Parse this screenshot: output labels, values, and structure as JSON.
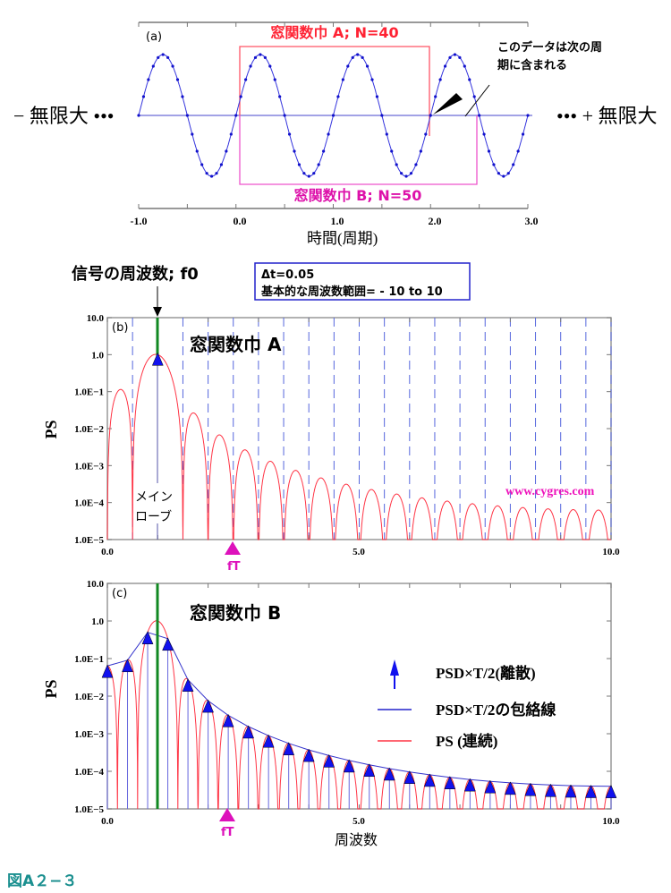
{
  "figure_title": "図A２−３",
  "chart_data": [
    {
      "type": "line",
      "panel": "(a)",
      "description_params": {
        "dt": 0.05,
        "signal_frequency": 1.0,
        "amplitude": 1.0
      },
      "xlim": [
        -1.0,
        3.0
      ],
      "xticks": [
        "-1.0",
        "0.0",
        "1.0",
        "2.0",
        "3.0"
      ],
      "xlabel": "時間(周期)",
      "left_label": "− 無限大 •••",
      "right_label": "••• + 無限大",
      "window_a_label": "窓関数巾 A; N=40",
      "window_b_label": "窓関数巾 B; N=50",
      "window_a": {
        "start": 0.0,
        "end": 1.95,
        "N": 40
      },
      "window_b": {
        "start": 0.0,
        "end": 2.45,
        "N": 50
      },
      "annotation": [
        "このデータは次の周",
        "期に含まれる"
      ]
    },
    {
      "type": "line",
      "panel": "(b)",
      "title": "窓関数巾 A",
      "N": 40,
      "dt": 0.05,
      "f0": 1.0,
      "ylabel": "PS",
      "yscale": "log",
      "ylim": [
        1e-05,
        10
      ],
      "yticks": [
        "10.0",
        "1.0",
        "1.0E−1",
        "1.0E−2",
        "1.0E−3",
        "1.0E−4",
        "1.0E−5"
      ],
      "xlim": [
        0,
        10
      ],
      "xticks": [
        "0.0",
        "5.0",
        "10.0"
      ],
      "discrete_spacing": 0.5,
      "signal_label": "信号の周波数; f0",
      "info": [
        "Δt=0.05",
        "基本的な周波数範囲= - 10 to 10"
      ],
      "mainlobe_label": [
        "メイン",
        "ローブ"
      ],
      "ft_label": "fT",
      "ft_value": 2.5,
      "watermark": "www.cygres.com"
    },
    {
      "type": "line",
      "panel": "(c)",
      "title": "窓関数巾 B",
      "N": 50,
      "dt": 0.05,
      "f0": 1.0,
      "ylabel": "PS",
      "yscale": "log",
      "ylim": [
        1e-05,
        10
      ],
      "yticks": [
        "10.0",
        "1.0",
        "1.0E−1",
        "1.0E−2",
        "1.0E−3",
        "1.0E−4",
        "1.0E−5"
      ],
      "xlim": [
        0,
        10
      ],
      "xticks": [
        "0.0",
        "5.0",
        "10.0"
      ],
      "xlabel": "周波数",
      "discrete_spacing": 0.4,
      "ft_label": "fT",
      "ft_value": 2.4,
      "legend": [
        "PSD×T/2(離散)",
        "PSD×T/2の包絡線",
        "PS (連続)"
      ]
    }
  ],
  "colors": {
    "signal": "#2222cc",
    "window_a": "#ff3344",
    "window_b": "#ee22aa",
    "ps": "#ff2233",
    "f0": "#118822",
    "ft": "#dd11bb",
    "title": "#1a8f8f"
  }
}
